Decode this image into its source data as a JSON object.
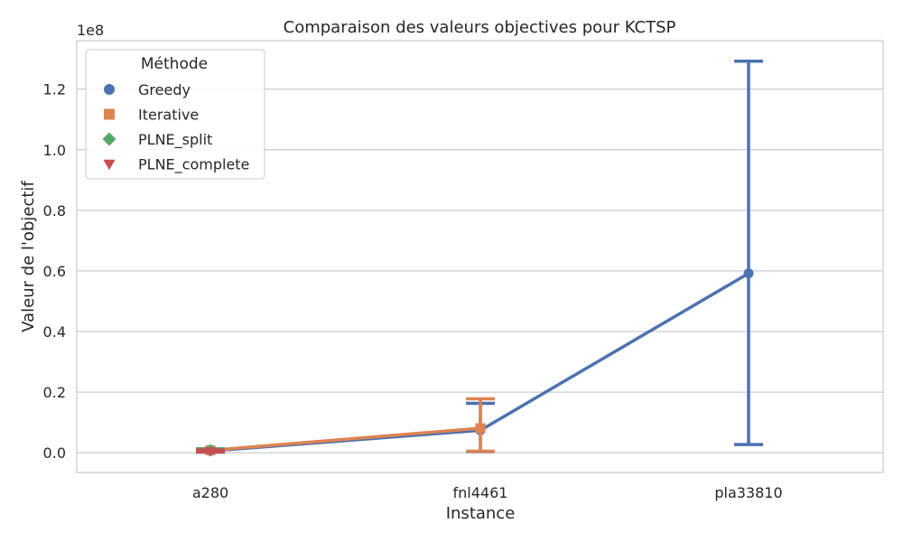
{
  "chart_data": {
    "type": "line",
    "title": "Comparaison des valeurs objectives pour KCTSP",
    "xlabel": "Instance",
    "ylabel": "Valeur de l'objectif",
    "y_offset_label": "1e8",
    "categories": [
      "a280",
      "fnl4461",
      "pla33810"
    ],
    "ylim": [
      -0.065,
      1.36
    ],
    "yticks": [
      0.0,
      0.2,
      0.4,
      0.6,
      0.8,
      1.0,
      1.2
    ],
    "ytick_labels": [
      "0.0",
      "0.2",
      "0.4",
      "0.6",
      "0.8",
      "1.0",
      "1.2"
    ],
    "y_scale": 100000000,
    "grid": true,
    "legend": {
      "title": "Méthode",
      "placement": "top-left"
    },
    "series": [
      {
        "name": "Greedy",
        "color": "#4c72b0",
        "marker": "circle",
        "values": [
          0.006,
          0.074,
          0.592
        ],
        "err_low": [
          0.002,
          0.004,
          0.027
        ],
        "err_high": [
          0.012,
          0.163,
          1.292
        ]
      },
      {
        "name": "Iterative",
        "color": "#dd8452",
        "marker": "square",
        "values": [
          0.008,
          0.081,
          null
        ],
        "err_low": [
          0.004,
          0.005,
          null
        ],
        "err_high": [
          0.012,
          0.178,
          null
        ]
      },
      {
        "name": "PLNE_split",
        "color": "#55a868",
        "marker": "diamond",
        "values": [
          0.009,
          null,
          null
        ],
        "err_low": [
          0.004,
          null,
          null
        ],
        "err_high": [
          0.013,
          null,
          null
        ]
      },
      {
        "name": "PLNE_complete",
        "color": "#c44e52",
        "marker": "triangle-down",
        "values": [
          0.005,
          null,
          null
        ],
        "err_low": [
          0.002,
          null,
          null
        ],
        "err_high": [
          0.009,
          null,
          null
        ]
      }
    ]
  }
}
